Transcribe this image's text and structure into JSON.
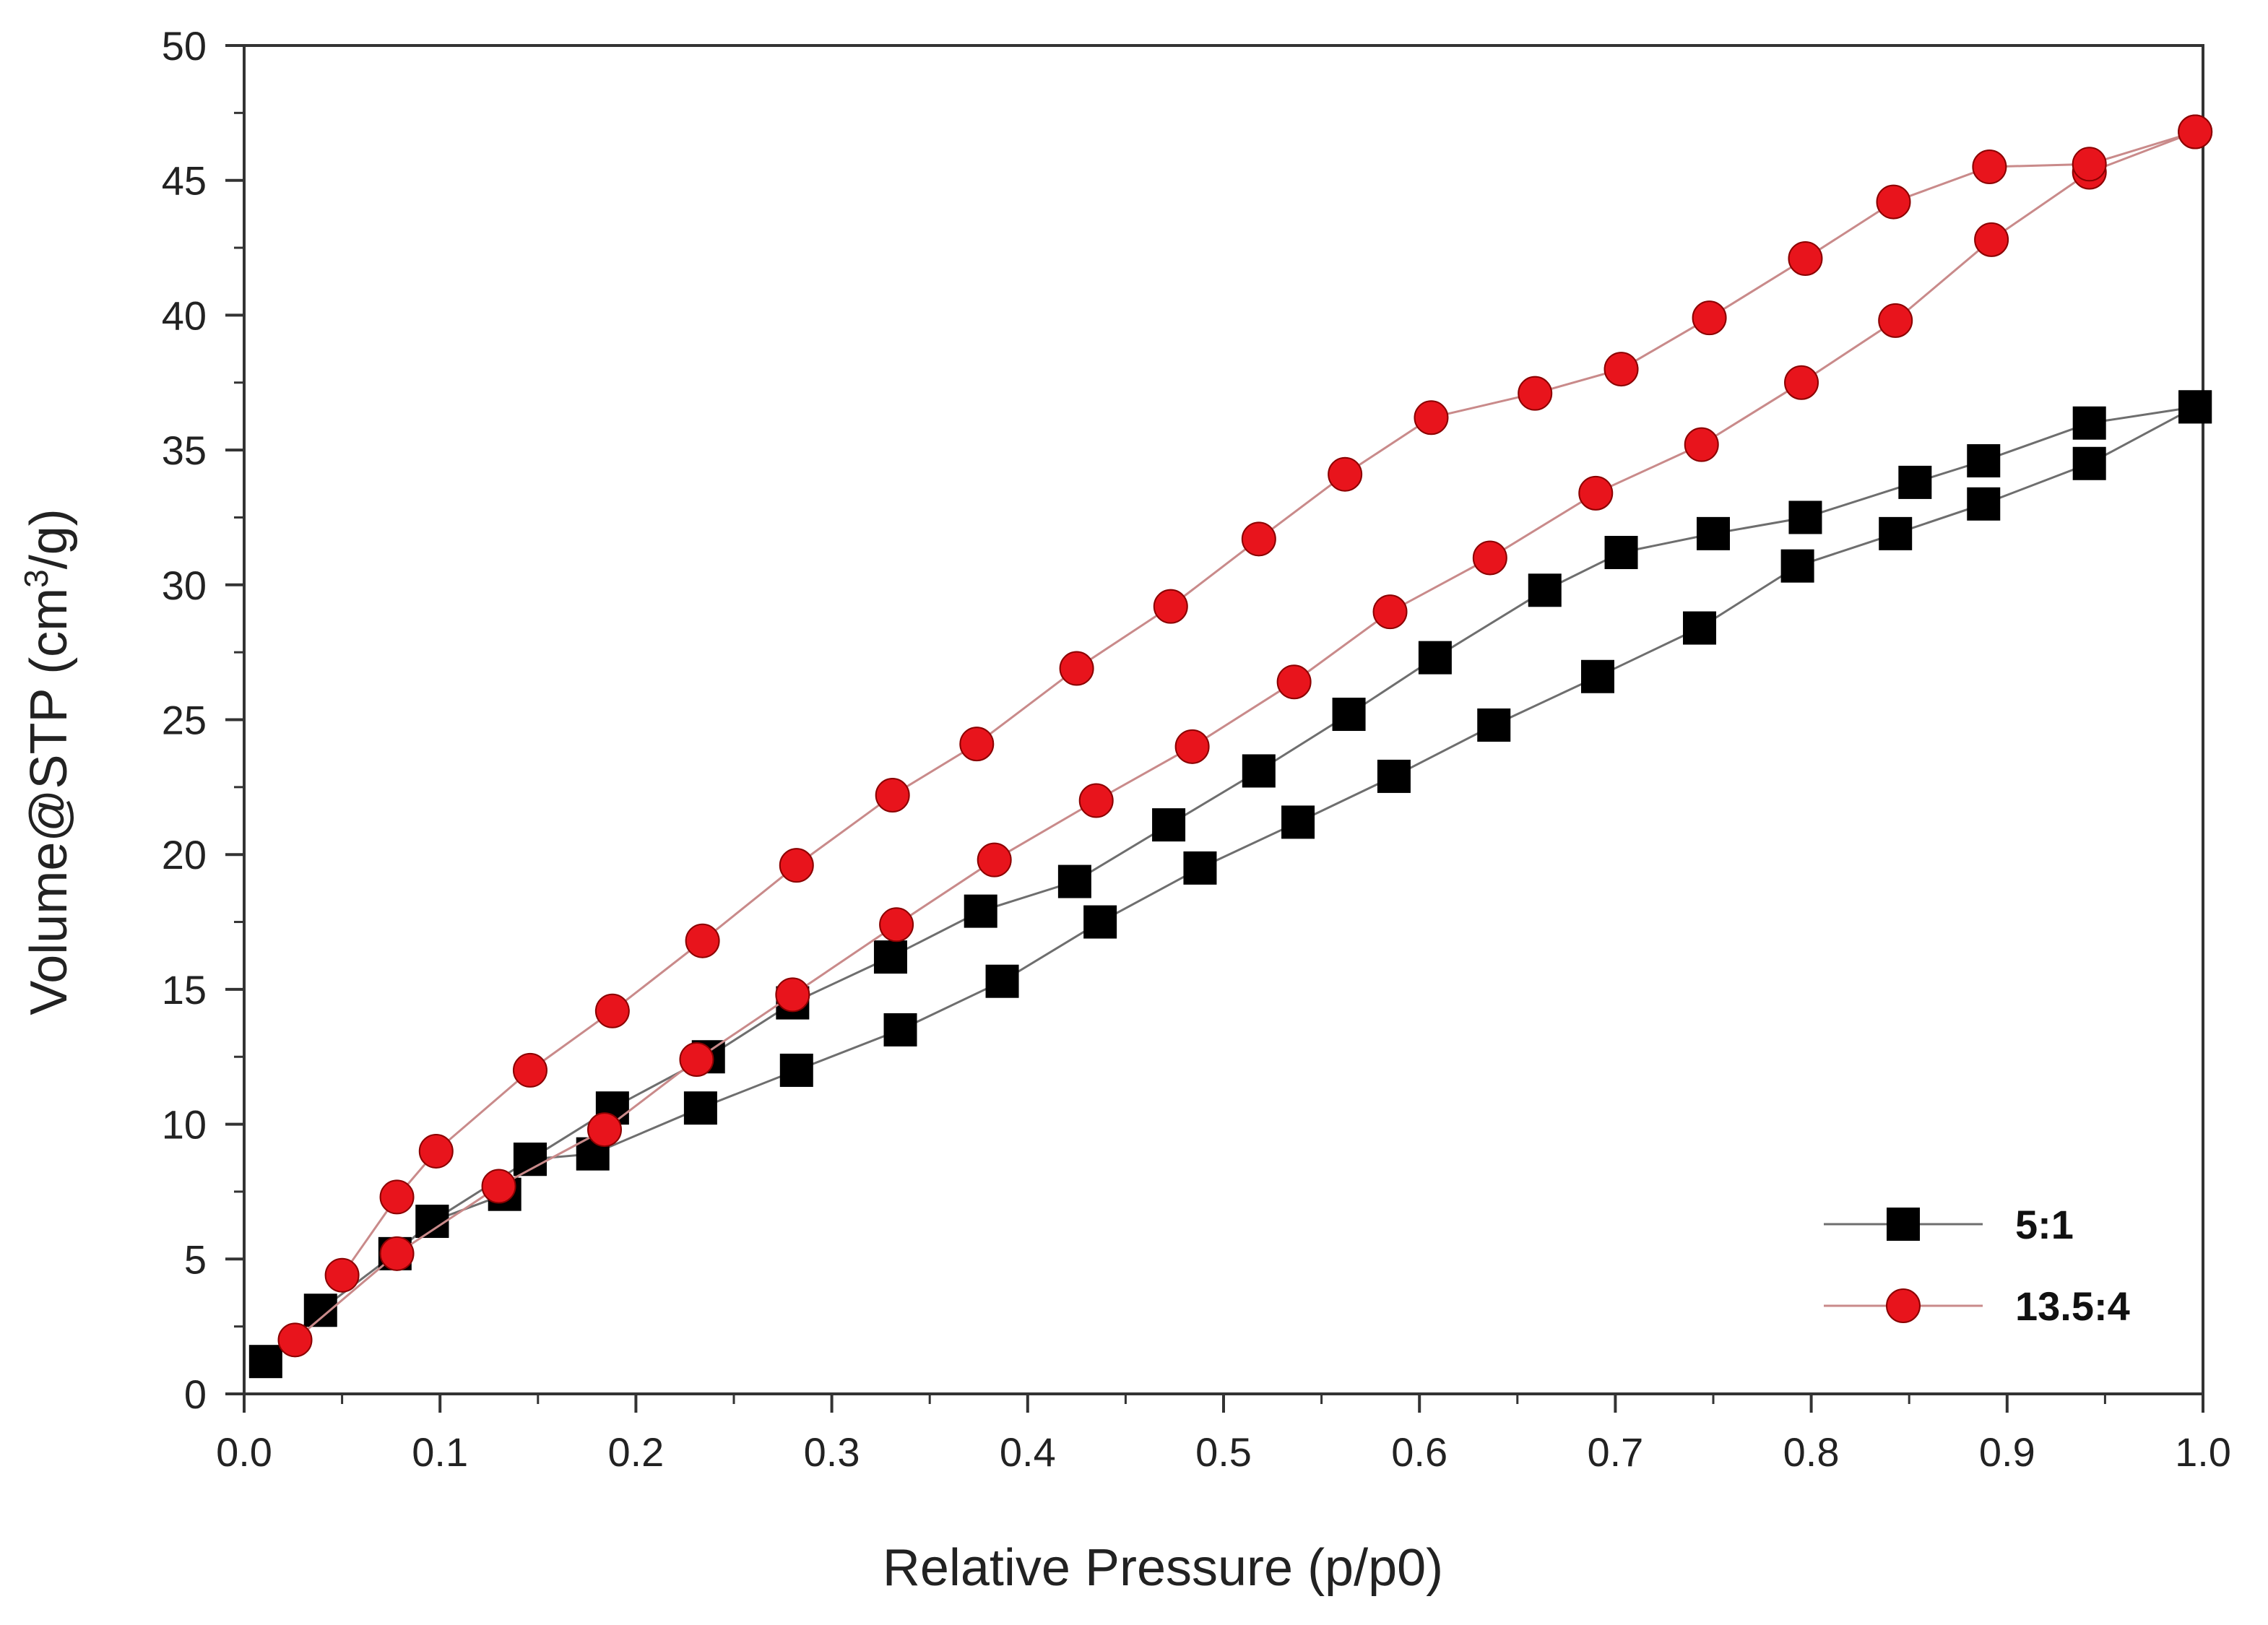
{
  "chart_data": {
    "type": "scatter",
    "title": "",
    "xlabel": "Relative Pressure (p/p0)",
    "ylabel_prefix": "Volume@STP (cm",
    "ylabel_sup": "3",
    "ylabel_suffix": "/g)",
    "xlim": [
      0.0,
      1.0
    ],
    "ylim": [
      0,
      50
    ],
    "x_ticks": [
      "0.0",
      "0.1",
      "0.2",
      "0.3",
      "0.4",
      "0.5",
      "0.6",
      "0.7",
      "0.8",
      "0.9",
      "1.0"
    ],
    "y_ticks": [
      "0",
      "5",
      "10",
      "15",
      "20",
      "25",
      "30",
      "35",
      "40",
      "45",
      "50"
    ],
    "grid": false,
    "legend_position": "bottom-right",
    "series": [
      {
        "name": "5:1",
        "marker": "square",
        "color": "#000000",
        "line_color": "#6e6e6e",
        "branches": [
          {
            "label": "adsorption",
            "x": [
              0.011,
              0.039,
              0.077,
              0.096,
              0.133,
              0.146,
              0.178,
              0.233,
              0.282,
              0.335,
              0.387,
              0.437,
              0.488,
              0.538,
              0.587,
              0.638,
              0.691,
              0.743,
              0.793,
              0.843,
              0.888,
              0.942,
              0.996
            ],
            "y": [
              1.2,
              3.1,
              5.2,
              6.4,
              7.4,
              8.7,
              8.9,
              10.6,
              12.0,
              13.5,
              15.3,
              17.5,
              19.5,
              21.2,
              22.9,
              24.8,
              26.6,
              28.4,
              30.7,
              31.9,
              33.0,
              34.5,
              36.6
            ]
          },
          {
            "label": "desorption",
            "x": [
              0.996,
              0.942,
              0.888,
              0.853,
              0.797,
              0.75,
              0.703,
              0.664,
              0.608,
              0.564,
              0.518,
              0.472,
              0.424,
              0.376,
              0.33,
              0.28,
              0.237,
              0.188,
              0.146,
              0.096
            ],
            "y": [
              36.6,
              36.0,
              34.6,
              33.8,
              32.5,
              31.9,
              31.2,
              29.8,
              27.3,
              25.2,
              23.1,
              21.1,
              19.0,
              17.9,
              16.2,
              14.5,
              12.5,
              10.6,
              8.7,
              6.4
            ]
          }
        ]
      },
      {
        "name": "13.5:4",
        "marker": "circle",
        "color": "#e8141c",
        "line_color": "#c98a8a",
        "branches": [
          {
            "label": "adsorption",
            "x": [
              0.026,
              0.078,
              0.13,
              0.184,
              0.231,
              0.28,
              0.333,
              0.383,
              0.435,
              0.484,
              0.536,
              0.585,
              0.636,
              0.69,
              0.744,
              0.795,
              0.843,
              0.892,
              0.942,
              0.996
            ],
            "y": [
              2.0,
              5.2,
              7.7,
              9.8,
              12.4,
              14.8,
              17.4,
              19.8,
              22.0,
              24.0,
              26.4,
              29.0,
              31.0,
              33.4,
              35.2,
              37.5,
              39.8,
              42.8,
              45.3,
              46.8
            ]
          },
          {
            "label": "desorption",
            "x": [
              0.996,
              0.942,
              0.891,
              0.842,
              0.797,
              0.748,
              0.703,
              0.659,
              0.606,
              0.562,
              0.518,
              0.473,
              0.425,
              0.374,
              0.331,
              0.282,
              0.234,
              0.188,
              0.146,
              0.098,
              0.078,
              0.05
            ],
            "y": [
              46.8,
              45.6,
              45.5,
              44.2,
              42.1,
              39.9,
              38.0,
              37.1,
              36.2,
              34.1,
              31.7,
              29.2,
              26.9,
              24.1,
              22.2,
              19.6,
              16.8,
              14.2,
              12.0,
              9.0,
              7.3,
              4.4
            ]
          }
        ]
      }
    ]
  }
}
